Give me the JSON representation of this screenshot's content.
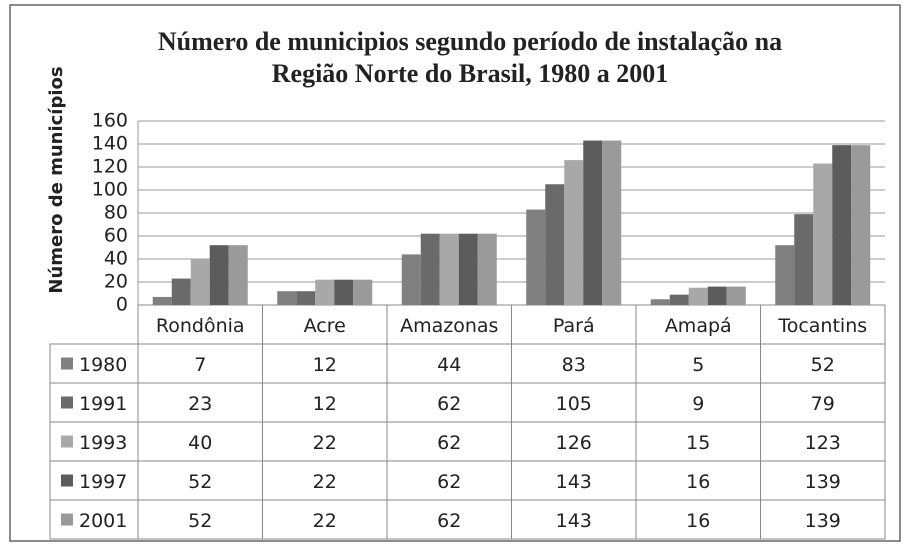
{
  "chart_data": {
    "type": "bar",
    "title": [
      "Número de municipios  segundo período de instalação na",
      "Região Norte do Brasil, 1980 a 2001"
    ],
    "ylabel": "Número de municípios",
    "categories": [
      "Rondônia",
      "Acre",
      "Amazonas",
      "Pará",
      "Amapá",
      "Tocantins"
    ],
    "series": [
      {
        "name": "1980",
        "color": "#808080",
        "values": [
          7,
          12,
          44,
          83,
          5,
          52
        ]
      },
      {
        "name": "1991",
        "color": "#6a6a6a",
        "values": [
          23,
          12,
          62,
          105,
          9,
          79
        ]
      },
      {
        "name": "1993",
        "color": "#a8a8a8",
        "values": [
          40,
          22,
          62,
          126,
          15,
          123
        ]
      },
      {
        "name": "1997",
        "color": "#5c5c5c",
        "values": [
          52,
          22,
          62,
          143,
          16,
          139
        ]
      },
      {
        "name": "2001",
        "color": "#9a9a9a",
        "values": [
          52,
          22,
          62,
          143,
          16,
          139
        ]
      }
    ],
    "ylim": [
      0,
      160
    ],
    "yticks": [
      0,
      20,
      40,
      60,
      80,
      100,
      120,
      140,
      160
    ],
    "grid": true
  }
}
